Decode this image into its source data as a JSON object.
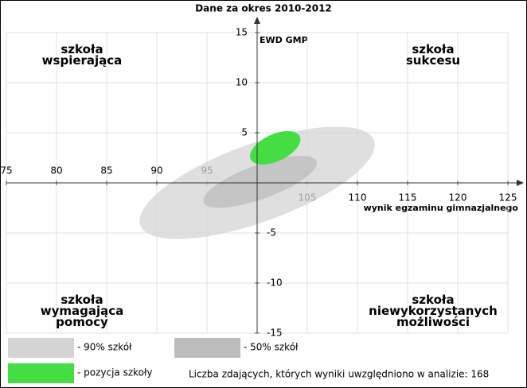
{
  "chart_data": {
    "type": "ellipse",
    "title": "Dane za okres 2010-2012",
    "x_label": "wynik egzaminu gimnazjalnego",
    "y_label": "EWD GMP",
    "xlim": [
      75,
      125
    ],
    "ylim": [
      -15,
      15
    ],
    "xticks": [
      75,
      80,
      85,
      90,
      95,
      105,
      110,
      115,
      120,
      125
    ],
    "yticks": [
      -15,
      -10,
      -5,
      5,
      10,
      15
    ],
    "grid": true,
    "quadrants": [
      "szkoła\nwspierająca",
      "szkoła\nsukcesu",
      "szkoła\nwymagająca\npomocy",
      "szkoła\nniewykorzystanych\nmożliwości"
    ],
    "series": [
      {
        "name": "- 90% szkół",
        "color": "#d4d4d4",
        "cx": 100,
        "cy": 0,
        "rx": 12.4,
        "ry": 3.9,
        "angle": 20
      },
      {
        "name": "- 50% szkół",
        "color": "#bcbcbc",
        "cx": 100.3,
        "cy": 0.1,
        "rx": 6,
        "ry": 1.7,
        "angle": 20
      },
      {
        "name": "- pozycja szkoły",
        "color": "#44dd44",
        "cx": 101.8,
        "cy": 3.5,
        "rx": 2.7,
        "ry": 1.35,
        "angle": 25
      }
    ],
    "note": "Liczba zdających, których wyniki uwzględniono w analizie: 168"
  }
}
